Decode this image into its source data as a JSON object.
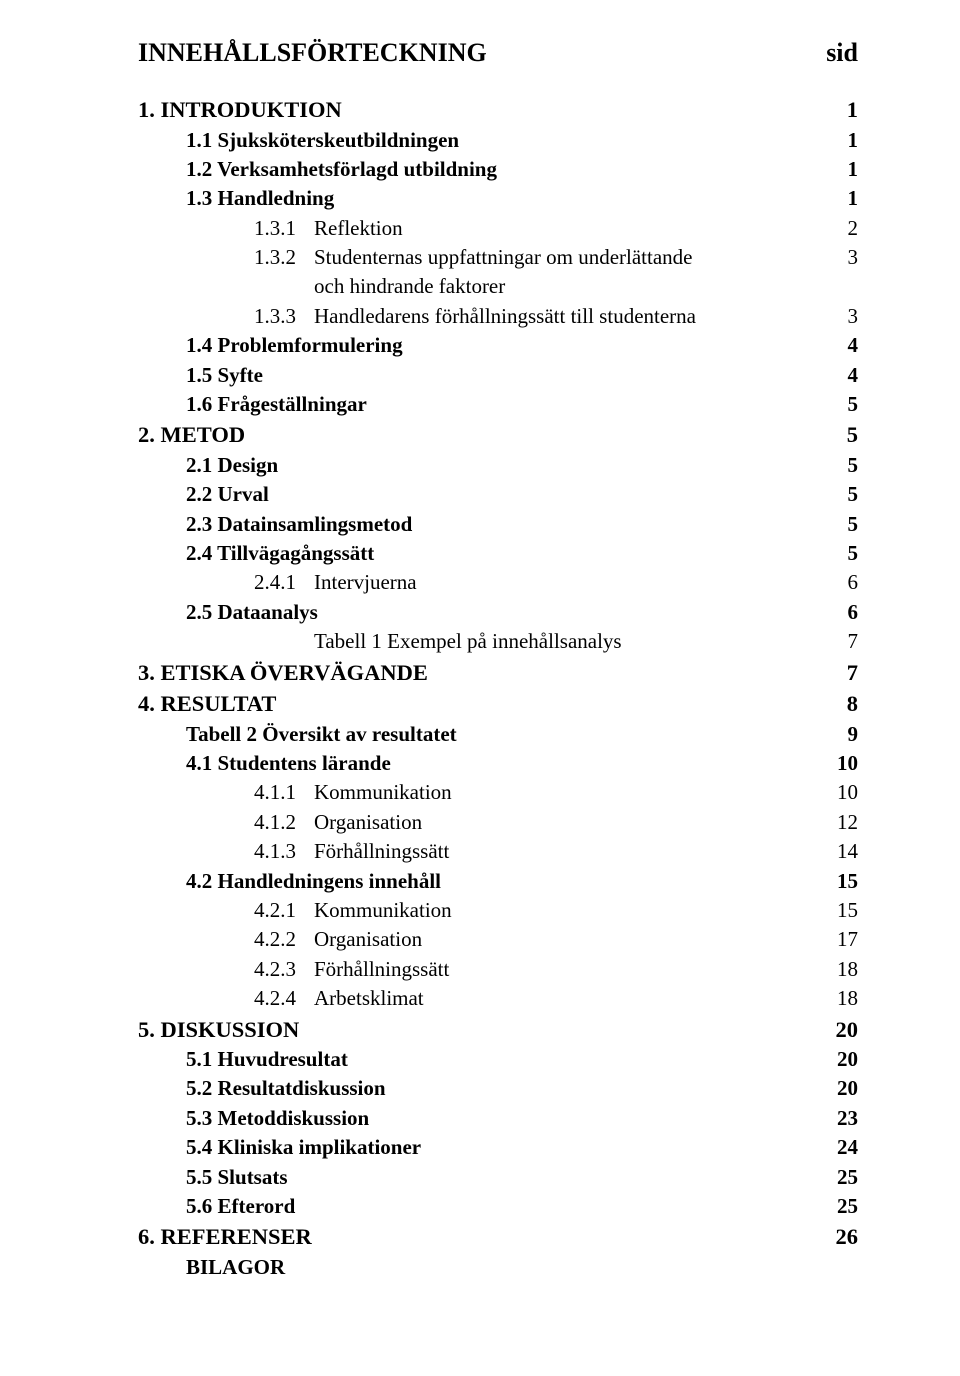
{
  "title": "INNEHÅLLSFÖRTECKNING",
  "pageHeader": "sid",
  "entries": [
    {
      "level": 0,
      "label": "1. INTRODUKTION",
      "page": "1",
      "pageWeight": "bold"
    },
    {
      "level": 1,
      "label": "1.1 Sjuksköterskeutbildningen",
      "page": "1",
      "pageWeight": "bold"
    },
    {
      "level": 1,
      "label": "1.2 Verksamhetsförlagd utbildning",
      "page": "1",
      "pageWeight": "bold"
    },
    {
      "level": 1,
      "label": "1.3 Handledning",
      "page": "1",
      "pageWeight": "bold"
    },
    {
      "level": 2,
      "num": "1.3.1",
      "label": "Reflektion",
      "page": "2",
      "pageWeight": "normal"
    },
    {
      "level": 2,
      "num": "1.3.2",
      "label": "Studenternas uppfattningar om underlättande",
      "page": "3",
      "pageWeight": "normal",
      "continuation": "och hindrande faktorer"
    },
    {
      "level": 2,
      "num": "1.3.3",
      "label": "Handledarens förhållningssätt till studenterna",
      "page": "3",
      "pageWeight": "normal"
    },
    {
      "level": 1,
      "label": "1.4 Problemformulering",
      "page": "4",
      "pageWeight": "bold"
    },
    {
      "level": 1,
      "label": "1.5 Syfte",
      "page": "4",
      "pageWeight": "bold"
    },
    {
      "level": 1,
      "label": "1.6 Frågeställningar",
      "page": "5",
      "pageWeight": "bold"
    },
    {
      "level": 0,
      "label": "2. METOD",
      "page": "5",
      "pageWeight": "bold"
    },
    {
      "level": 1,
      "label": "2.1 Design",
      "page": "5",
      "pageWeight": "bold"
    },
    {
      "level": 1,
      "label": "2.2 Urval",
      "page": "5",
      "pageWeight": "bold"
    },
    {
      "level": 1,
      "label": "2.3 Datainsamlingsmetod",
      "page": "5",
      "pageWeight": "bold"
    },
    {
      "level": 1,
      "label": "2.4 Tillvägagångssätt",
      "page": "5",
      "pageWeight": "bold"
    },
    {
      "level": 2,
      "num": "2.4.1",
      "label": "Intervjuerna",
      "page": "6",
      "pageWeight": "normal"
    },
    {
      "level": 1,
      "label": "2.5 Dataanalys",
      "page": "6",
      "pageWeight": "bold"
    },
    {
      "level": 2,
      "num": "",
      "label": "Tabell 1 Exempel på innehållsanalys",
      "page": "7",
      "pageWeight": "normal"
    },
    {
      "level": 0,
      "label": "3. ETISKA ÖVERVÄGANDE",
      "page": "7",
      "pageWeight": "bold"
    },
    {
      "level": 0,
      "label": "4. RESULTAT",
      "page": "8",
      "pageWeight": "bold"
    },
    {
      "level": 1,
      "label": "Tabell 2 Översikt av resultatet",
      "page": "9",
      "pageWeight": "bold"
    },
    {
      "level": 1,
      "label": "4.1 Studentens lärande",
      "page": "10",
      "pageWeight": "bold"
    },
    {
      "level": 2,
      "num": "4.1.1",
      "label": "Kommunikation",
      "page": "10",
      "pageWeight": "normal"
    },
    {
      "level": 2,
      "num": "4.1.2",
      "label": "Organisation",
      "page": "12",
      "pageWeight": "normal"
    },
    {
      "level": 2,
      "num": "4.1.3",
      "label": "Förhållningssätt",
      "page": "14",
      "pageWeight": "normal"
    },
    {
      "level": 1,
      "label": "4.2 Handledningens innehåll",
      "page": "15",
      "pageWeight": "bold"
    },
    {
      "level": 2,
      "num": "4.2.1",
      "label": "Kommunikation",
      "page": "15",
      "pageWeight": "normal"
    },
    {
      "level": 2,
      "num": "4.2.2",
      "label": "Organisation",
      "page": "17",
      "pageWeight": "normal"
    },
    {
      "level": 2,
      "num": "4.2.3",
      "label": "Förhållningssätt",
      "page": "18",
      "pageWeight": "normal"
    },
    {
      "level": 2,
      "num": "4.2.4",
      "label": "Arbetsklimat",
      "page": "18",
      "pageWeight": "normal"
    },
    {
      "level": 0,
      "label": "5. DISKUSSION",
      "page": "20",
      "pageWeight": "bold"
    },
    {
      "level": 1,
      "label": "5.1 Huvudresultat",
      "page": "20",
      "pageWeight": "bold"
    },
    {
      "level": 1,
      "label": "5.2 Resultatdiskussion",
      "page": "20",
      "pageWeight": "bold"
    },
    {
      "level": 1,
      "label": "5.3 Metoddiskussion",
      "page": "23",
      "pageWeight": "bold"
    },
    {
      "level": 1,
      "label": "5.4 Kliniska implikationer",
      "page": "24",
      "pageWeight": "bold"
    },
    {
      "level": 1,
      "label": "5.5 Slutsats",
      "page": "25",
      "pageWeight": "bold"
    },
    {
      "level": 1,
      "label": "5.6 Efterord",
      "page": "25",
      "pageWeight": "bold"
    },
    {
      "level": 0,
      "label": "6. REFERENSER",
      "page": "26",
      "pageWeight": "bold"
    },
    {
      "level": 1,
      "label": "BILAGOR",
      "page": "",
      "pageWeight": "bold"
    }
  ]
}
